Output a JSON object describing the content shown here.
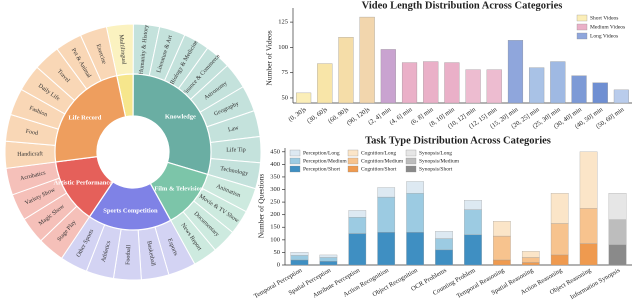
{
  "chart_data": [
    {
      "type": "sunburst",
      "start_angle": -12,
      "groups": [
        {
          "children": [
            {
              "name": "Multilingual",
              "value": 3.4
            }
          ],
          "color": "#f6e68c",
          "leaf_color": "#fbf2c0"
        },
        {
          "name": "Knowledge",
          "color": "#6aaea3",
          "leaf_color": "#c4e2dc",
          "children": [
            {
              "name": "Humanity & History",
              "value": 3.3
            },
            {
              "name": "Literature & Art",
              "value": 3.3
            },
            {
              "name": "Biology & Medicine",
              "value": 3.3
            },
            {
              "name": "Finance & Commerce",
              "value": 3.3
            },
            {
              "name": "Astronomy",
              "value": 3.3
            },
            {
              "name": "Geography",
              "value": 3.3
            },
            {
              "name": "Law",
              "value": 3.3
            },
            {
              "name": "Life Tip",
              "value": 3.3
            },
            {
              "name": "Technology",
              "value": 3.3
            }
          ]
        },
        {
          "name": "Film & Television",
          "color": "#7cc5a9",
          "leaf_color": "#cdeadf",
          "children": [
            {
              "name": "Animation",
              "value": 3.1
            },
            {
              "name": "Movie & TV Show",
              "value": 3.1
            },
            {
              "name": "Documentary",
              "value": 3.1
            },
            {
              "name": "News Report",
              "value": 3.1
            }
          ]
        },
        {
          "name": "Sports Competition",
          "color": "#7f82e6",
          "leaf_color": "#d3d3f3",
          "children": [
            {
              "name": "Esports",
              "value": 3.5
            },
            {
              "name": "Basketball",
              "value": 3.5
            },
            {
              "name": "Football",
              "value": 3.5
            },
            {
              "name": "Athletics",
              "value": 3.5
            },
            {
              "name": "Other Sports",
              "value": 3.5
            }
          ]
        },
        {
          "name": "Artistic Performance",
          "color": "#e5605a",
          "leaf_color": "#f5c0b9",
          "children": [
            {
              "name": "Stage Play",
              "value": 3.4
            },
            {
              "name": "Magic Show",
              "value": 3.4
            },
            {
              "name": "Variety Show",
              "value": 3.4
            },
            {
              "name": "Acrobatics",
              "value": 3.4
            }
          ]
        },
        {
          "name": "Life Record",
          "color": "#ee9e5e",
          "leaf_color": "#f9d7b6",
          "children": [
            {
              "name": "Handicraft",
              "value": 3.4
            },
            {
              "name": "Food",
              "value": 3.4
            },
            {
              "name": "Fashion",
              "value": 3.4
            },
            {
              "name": "Daily Life",
              "value": 3.4
            },
            {
              "name": "Travel",
              "value": 3.4
            },
            {
              "name": "Pet & Animal",
              "value": 3.4
            },
            {
              "name": "Exercise",
              "value": 3.4
            }
          ]
        }
      ]
    },
    {
      "type": "bar",
      "title": "Video Length Distribution Across Categories",
      "y_label": "Number of Videos",
      "categories": [
        "(0, 30]s",
        "(30, 60]s",
        "(60, 90]s",
        "(90, 120]s",
        "(2, 4] min",
        "(4, 6] min",
        "(6, 8] min",
        "(8, 10] min",
        "(10, 12] min",
        "(12, 15] min",
        "(15, 20] min",
        "(20, 25] min",
        "(25, 30] min",
        "(30, 40] min",
        "(40, 50] min",
        "(50, 60] min"
      ],
      "values": [
        55,
        84,
        110,
        130,
        98,
        85,
        86,
        85,
        78,
        78,
        107,
        80,
        86,
        72,
        65,
        58
      ],
      "colors": [
        "#fbeeb8",
        "#f8e5a8",
        "#f5dda8",
        "#f2d6ad",
        "#c9a3d0",
        "#eab0c8",
        "#eab0c8",
        "#eab0c8",
        "#edbcd0",
        "#edbcd0",
        "#8fa6dc",
        "#a9c2e6",
        "#9fb9e3",
        "#7d9ad6",
        "#6f8fd2",
        "#b9ccec"
      ],
      "legend": [
        {
          "name": "Short Videos",
          "color": "#fbeeb8"
        },
        {
          "name": "Medium Videos",
          "color": "#eab0c8"
        },
        {
          "name": "Long Videos",
          "color": "#8fa6dc"
        }
      ],
      "ylim": [
        45,
        135
      ],
      "yticks": [
        50,
        75,
        100,
        125
      ]
    },
    {
      "type": "stacked_bar",
      "title": "Task Type Distribution Across Categories",
      "y_label": "Number of Questions",
      "categories": [
        "Temporal Perception",
        "Spatial Perception",
        "Attribute Perception",
        "Action Recognition",
        "Object Recognition",
        "OCR Problems",
        "Counting Problem",
        "Temporal Reasoning",
        "Spatial Reasoning",
        "Action Reasoning",
        "Object Reasoning",
        "Information Synopsis"
      ],
      "series": [
        {
          "name": "Perception/Short",
          "color": "#3f8fc2",
          "values": [
            20,
            15,
            125,
            130,
            130,
            60,
            120,
            null,
            null,
            null,
            null,
            null
          ]
        },
        {
          "name": "Perception/Medium",
          "color": "#9ccbe2",
          "values": [
            18,
            15,
            65,
            140,
            155,
            45,
            100,
            null,
            null,
            null,
            null,
            null
          ]
        },
        {
          "name": "Perception/Long",
          "color": "#dde9f2",
          "values": [
            13,
            10,
            27,
            38,
            47,
            29,
            37,
            null,
            null,
            null,
            null,
            null
          ]
        },
        {
          "name": "Cognition/Short",
          "color": "#ef9a4f",
          "values": [
            null,
            null,
            null,
            null,
            null,
            null,
            null,
            20,
            10,
            40,
            85,
            null
          ]
        },
        {
          "name": "Cognition/Medium",
          "color": "#f7c38e",
          "values": [
            null,
            null,
            null,
            null,
            null,
            null,
            null,
            95,
            20,
            125,
            140,
            null
          ]
        },
        {
          "name": "Cognition/Long",
          "color": "#fbe5c8",
          "values": [
            null,
            null,
            null,
            null,
            null,
            null,
            null,
            59,
            25,
            120,
            225,
            null
          ]
        },
        {
          "name": "Synopsis/Short",
          "color": "#8a8a8a",
          "values": [
            null,
            null,
            null,
            null,
            null,
            null,
            null,
            null,
            null,
            null,
            null,
            80
          ]
        },
        {
          "name": "Synopsis/Medium",
          "color": "#bdbdbd",
          "values": [
            null,
            null,
            null,
            null,
            null,
            null,
            null,
            null,
            null,
            null,
            null,
            100
          ]
        },
        {
          "name": "Synopsis/Long",
          "color": "#e6e6e6",
          "values": [
            null,
            null,
            null,
            null,
            null,
            null,
            null,
            null,
            null,
            null,
            null,
            105
          ]
        }
      ],
      "legend_order": [
        2,
        1,
        0,
        5,
        4,
        3,
        8,
        7,
        6
      ],
      "ylim": [
        0,
        465
      ],
      "yticks": [
        0,
        50,
        100,
        150,
        200,
        250,
        300,
        350,
        400,
        450
      ]
    }
  ]
}
